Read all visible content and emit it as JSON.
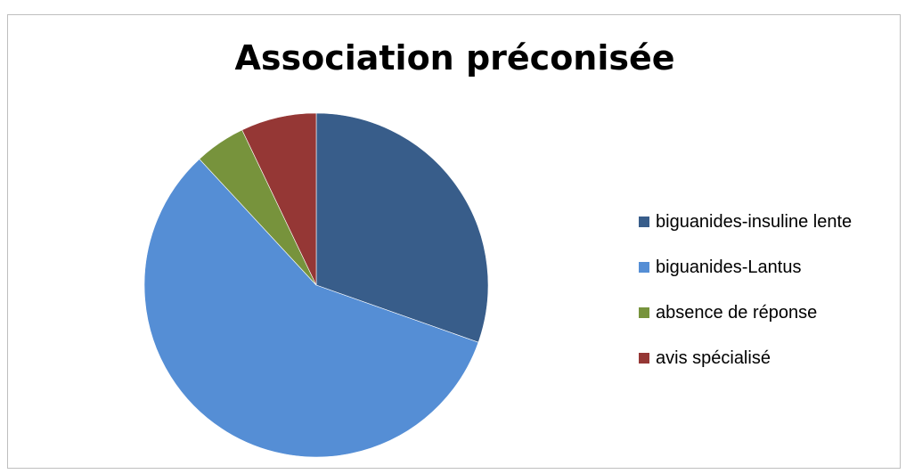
{
  "chart_data": {
    "type": "pie",
    "title": "Association préconisée",
    "categories": [
      "biguanides-insuline lente",
      "biguanides-Lantus",
      "absence de réponse",
      "avis spécialisé"
    ],
    "values": [
      30.4,
      57.7,
      4.8,
      7.1
    ],
    "colors": [
      "#385D8A",
      "#558ED5",
      "#77933C",
      "#953735"
    ],
    "start_angle_deg": 0,
    "direction": "clockwise",
    "legend_position": "right"
  }
}
